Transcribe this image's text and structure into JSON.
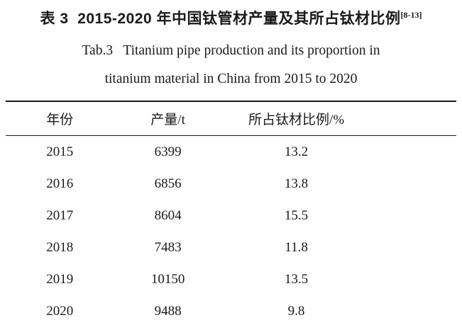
{
  "caption": {
    "zh_title": "表 3  2015-2020 年中国钛管材产量及其所占钛材比例",
    "citation": "[8-13]",
    "en_line1": "Tab.3   Titanium pipe production and its proportion in",
    "en_line2": "titanium material in China from 2015 to 2020"
  },
  "table": {
    "columns": [
      "年份",
      "产量/t",
      "所占钛材比例/%"
    ],
    "rows": [
      [
        "2015",
        "6399",
        "13.2"
      ],
      [
        "2016",
        "6856",
        "13.8"
      ],
      [
        "2017",
        "8604",
        "15.5"
      ],
      [
        "2018",
        "7483",
        "11.8"
      ],
      [
        "2019",
        "10150",
        "13.5"
      ],
      [
        "2020",
        "9488",
        "9.8"
      ]
    ]
  },
  "colors": {
    "text": "#1a1a1a",
    "background": "#ffffff",
    "rule": "#1a1a1a"
  }
}
